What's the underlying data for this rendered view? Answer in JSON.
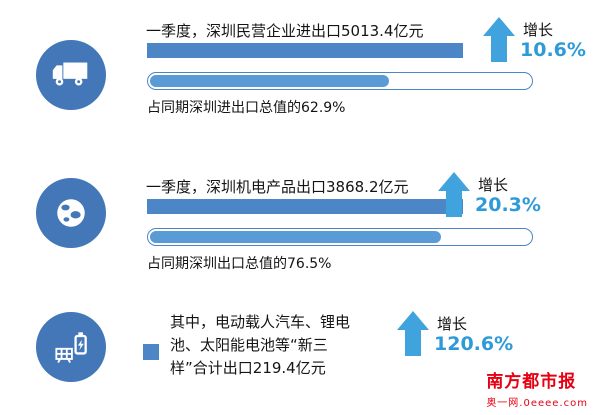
{
  "sections": [
    {
      "icon": "truck-icon",
      "headline": "一季度，深圳民营企业进出口5013.4亿元",
      "share_label": "占同期深圳进出口总值的62.9%",
      "progress_percent": 62.9,
      "growth_label": "增长",
      "growth_value": "10.6%"
    },
    {
      "icon": "globe-icon",
      "headline": "一季度，深圳机电产品出口3868.2亿元",
      "share_label": "占同期深圳出口总值的76.5%",
      "progress_percent": 76.5,
      "growth_label": "增长",
      "growth_value": "20.3%"
    },
    {
      "icon": "battery-solar-icon",
      "headline": "其中，电动载人汽车、锂电池、太阳能电池等“新三样”合计出口219.4亿元",
      "growth_label": "增长",
      "growth_value": "120.6%"
    }
  ],
  "footer": {
    "brand": "南方都市报",
    "site": "奥一网.0eeee.com"
  },
  "colors": {
    "circle_blue": "#4377b8",
    "bar_blue": "#4d86c6",
    "progress_fill_blue": "#5b9bd5",
    "arrow_blue": "#41a3dd",
    "growth_value_blue": "#2e9ad8",
    "brand_red": "#e60012"
  },
  "chart_data": {
    "type": "bar",
    "title": "",
    "items": [
      {
        "category": "一季度深圳民营企业进出口",
        "value_yi_yuan": 5013.4,
        "share_percent": 62.9,
        "share_base": "同期深圳进出口总值",
        "growth_percent": 10.6
      },
      {
        "category": "一季度深圳机电产品出口",
        "value_yi_yuan": 3868.2,
        "share_percent": 76.5,
        "share_base": "同期深圳出口总值",
        "growth_percent": 20.3
      },
      {
        "category": "电动载人汽车、锂电池、太阳能电池等“新三样”合计出口",
        "value_yi_yuan": 219.4,
        "share_percent": null,
        "growth_percent": 120.6
      }
    ]
  }
}
